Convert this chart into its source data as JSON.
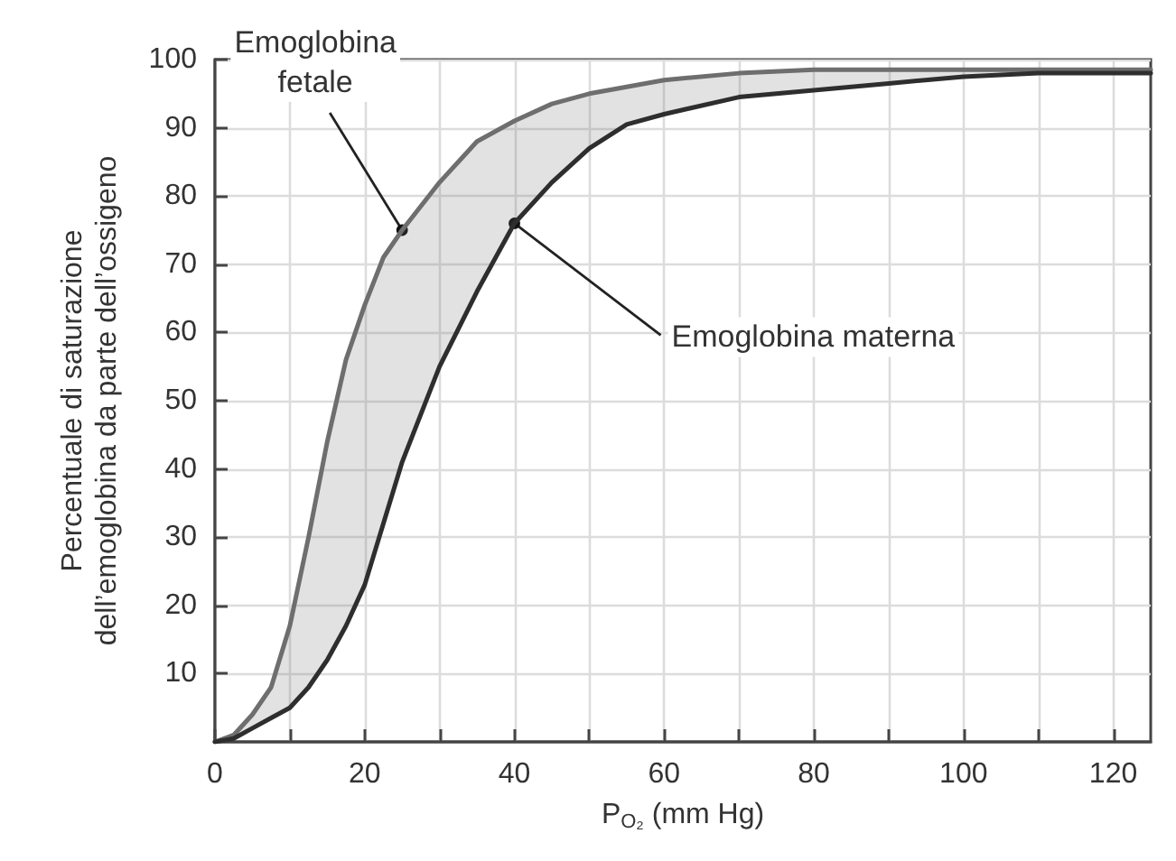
{
  "chart_data": {
    "type": "line",
    "xlabel": "P$_{O₂}$ (mm Hg)",
    "ylabel": "Percentuale di saturazione dell’emoglobina da parte dell’ossigeno",
    "x": [
      0,
      2.5,
      5,
      7.5,
      10,
      12.5,
      15,
      17.5,
      20,
      22.5,
      25,
      30,
      35,
      40,
      45,
      50,
      55,
      60,
      70,
      80,
      90,
      100,
      110,
      120,
      125
    ],
    "series": [
      {
        "color": "#6e6e6e",
        "values": [
          0,
          1,
          4,
          8,
          17,
          30,
          44,
          56,
          64,
          71,
          75,
          82,
          88,
          91,
          93.5,
          95,
          96,
          97,
          98,
          98.5,
          98.5,
          98.5,
          98.5,
          98.5,
          98.5
        ],
        "lower": [
          0,
          0.5,
          2,
          3.5,
          5,
          8,
          12,
          17,
          23,
          32,
          41,
          55,
          66,
          76,
          82,
          87,
          90.5,
          92,
          94.5,
          95.5,
          96.5,
          97.5,
          98,
          98,
          98
        ],
        "upper": [
          0,
          1,
          4,
          8,
          17,
          30,
          44,
          56,
          64,
          71,
          75,
          82,
          88,
          91,
          93.5,
          95,
          96,
          97,
          98,
          98.5,
          98.5,
          98.5,
          98.5,
          98.5,
          98.5
        ]
      },
      {
        "color": "#2e2e2e",
        "values": [
          0,
          0.5,
          2,
          3.5,
          5,
          8,
          12,
          17,
          23,
          32,
          41,
          55,
          66,
          76,
          82,
          87,
          90.5,
          92,
          94.5,
          95.5,
          96.5,
          97.5,
          98,
          98,
          98
        ]
      }
    ],
    "annotations": [
      {
        "text": "Emoglobina fetale",
        "x": 25,
        "y": 75
      },
      {
        "text": "Emoglobina materna",
        "x": 40,
        "y": 76
      }
    ],
    "xlim": [
      0,
      125
    ],
    "xticks": [
      0,
      {
        "value": 10,
        "label": null
      },
      20,
      {
        "value": 30,
        "label": null
      },
      40,
      {
        "value": 50,
        "label": null
      },
      60,
      {
        "value": 70,
        "label": null
      },
      80,
      {
        "value": 90,
        "label": null
      },
      100,
      {
        "value": 110,
        "label": null
      },
      120
    ],
    "ylim": [
      0,
      100
    ],
    "yticks": [
      10,
      20,
      30,
      40,
      50,
      60,
      70,
      80,
      90,
      100
    ],
    "grid": true,
    "marker": "none",
    "line_style": "solid"
  }
}
